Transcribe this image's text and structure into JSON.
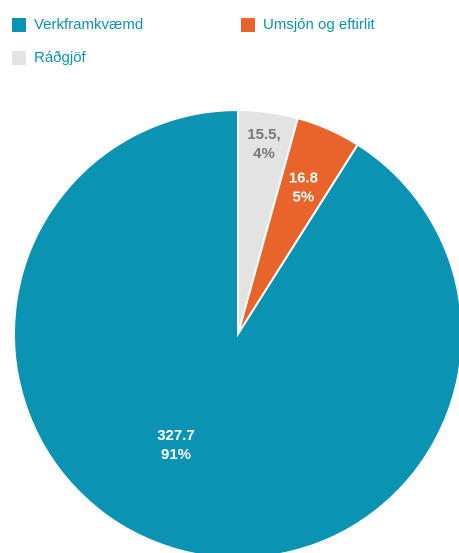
{
  "chart_data": {
    "type": "pie",
    "legend_position": "top-left",
    "series": [
      {
        "name": "Verkframkvæmd",
        "value": 327.7,
        "percent": "91%",
        "color": "#0b93b4",
        "text_color": "#0b93b4",
        "label_color": "#ffffff",
        "value_label": "327.7",
        "percent_label": "91%"
      },
      {
        "name": "Umsjón og eftirlit",
        "value": 16.8,
        "percent": "5%",
        "color": "#e8642a",
        "text_color": "#0b93b4",
        "label_color": "#ffffff",
        "value_label": "16.8",
        "percent_label": "5%"
      },
      {
        "name": "Ráðgjöf",
        "value": 15.5,
        "percent": "4%",
        "color": "#e3e3e3",
        "text_color": "#0b93b4",
        "label_color": "#777777",
        "value_label": "15.5,",
        "percent_label": "4%"
      }
    ]
  }
}
